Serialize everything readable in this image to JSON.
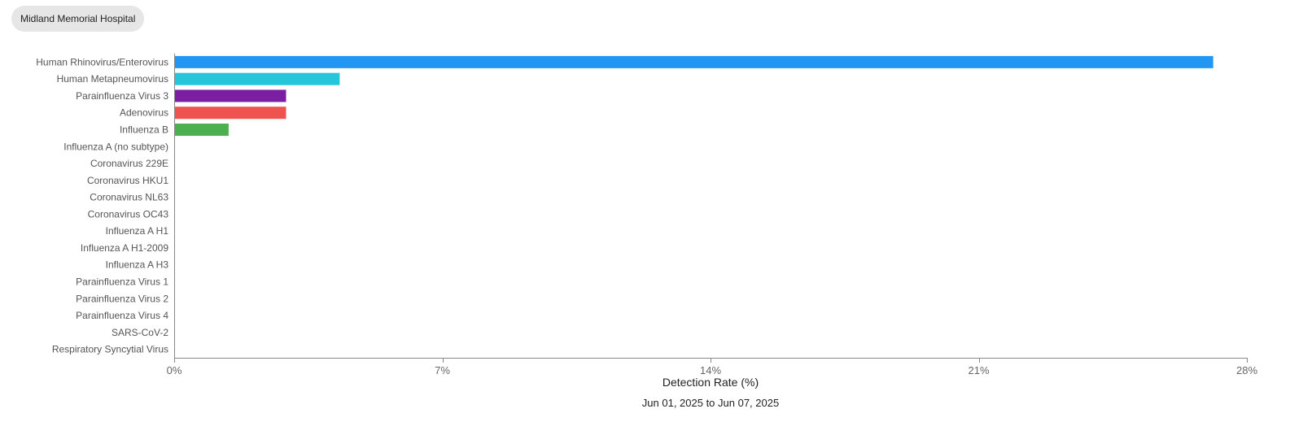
{
  "site_selector": {
    "label": "Midland Memorial Hospital"
  },
  "chart_data": {
    "type": "bar",
    "orientation": "horizontal",
    "categories": [
      "Human Rhinovirus/Enterovirus",
      "Human Metapneumovirus",
      "Parainfluenza Virus 3",
      "Adenovirus",
      "Influenza B",
      "Influenza A (no subtype)",
      "Coronavirus 229E",
      "Coronavirus HKU1",
      "Coronavirus NL63",
      "Coronavirus OC43",
      "Influenza A H1",
      "Influenza A H1-2009",
      "Influenza A H3",
      "Parainfluenza Virus 1",
      "Parainfluenza Virus 2",
      "Parainfluenza Virus 4",
      "SARS-CoV-2",
      "Respiratory Syncytial Virus"
    ],
    "values": [
      27.1,
      4.3,
      2.9,
      2.9,
      1.4,
      0,
      0,
      0,
      0,
      0,
      0,
      0,
      0,
      0,
      0,
      0,
      0,
      0
    ],
    "colors": [
      "#2196f3",
      "#26c6da",
      "#7b1fa2",
      "#ef5350",
      "#4caf50",
      "#2196f3",
      "#2196f3",
      "#2196f3",
      "#2196f3",
      "#2196f3",
      "#2196f3",
      "#2196f3",
      "#2196f3",
      "#2196f3",
      "#2196f3",
      "#2196f3",
      "#2196f3",
      "#2196f3"
    ],
    "xlim": [
      0,
      28
    ],
    "xticks": [
      0,
      7,
      14,
      21,
      28
    ],
    "xtick_labels": [
      "0%",
      "7%",
      "14%",
      "21%",
      "28%"
    ],
    "xlabel": "Detection Rate (%)",
    "ylabel": "",
    "title": "",
    "subtitle": "Jun 01, 2025 to Jun 07, 2025",
    "grid": false,
    "legend": "none"
  }
}
